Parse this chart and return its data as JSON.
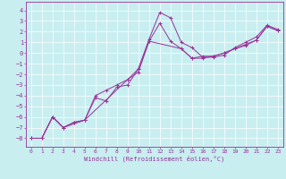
{
  "xlabel": "Windchill (Refroidissement éolien,°C)",
  "bg_color": "#c8eef0",
  "line_color": "#993399",
  "grid_color": "#ffffff",
  "xlim": [
    -0.5,
    23.5
  ],
  "ylim": [
    -8.8,
    4.8
  ],
  "xticks": [
    0,
    1,
    2,
    3,
    4,
    5,
    6,
    7,
    8,
    9,
    10,
    11,
    12,
    13,
    14,
    15,
    16,
    17,
    18,
    19,
    20,
    21,
    22,
    23
  ],
  "yticks": [
    4,
    3,
    2,
    1,
    0,
    -1,
    -2,
    -3,
    -4,
    -5,
    -6,
    -7,
    -8
  ],
  "series1_x": [
    0,
    1,
    2,
    3,
    4,
    5,
    6,
    7,
    8,
    9,
    10,
    11,
    12,
    13,
    14,
    15,
    16,
    17,
    18,
    19,
    20,
    21,
    22,
    23
  ],
  "series1_y": [
    -8.0,
    -8.0,
    -6.0,
    -7.0,
    -6.5,
    -6.3,
    -4.2,
    -4.5,
    -3.2,
    -3.0,
    -1.5,
    1.3,
    3.8,
    3.3,
    1.0,
    0.5,
    -0.4,
    -0.4,
    -0.2,
    0.5,
    1.0,
    1.5,
    2.6,
    2.2
  ],
  "series2_x": [
    0,
    1,
    2,
    3,
    4,
    5,
    6,
    7,
    8,
    9,
    10,
    11,
    12,
    13,
    14,
    15,
    16,
    17,
    18,
    19,
    20,
    21,
    22,
    23
  ],
  "series2_y": [
    -8.0,
    -8.0,
    -6.0,
    -7.0,
    -6.5,
    -6.3,
    -4.0,
    -3.5,
    -3.0,
    -2.5,
    -1.8,
    1.1,
    2.8,
    1.1,
    0.4,
    -0.5,
    -0.5,
    -0.3,
    0.0,
    0.4,
    0.7,
    1.2,
    2.5,
    2.1
  ],
  "series3_x": [
    0,
    1,
    2,
    3,
    5,
    9,
    10,
    11,
    14,
    15,
    16,
    17,
    18,
    19,
    20,
    21,
    22,
    23
  ],
  "series3_y": [
    -8.0,
    -8.0,
    -6.0,
    -7.0,
    -6.3,
    -2.5,
    -1.5,
    1.1,
    0.4,
    -0.5,
    -0.3,
    -0.3,
    0.0,
    0.4,
    0.8,
    1.2,
    2.5,
    2.1
  ]
}
